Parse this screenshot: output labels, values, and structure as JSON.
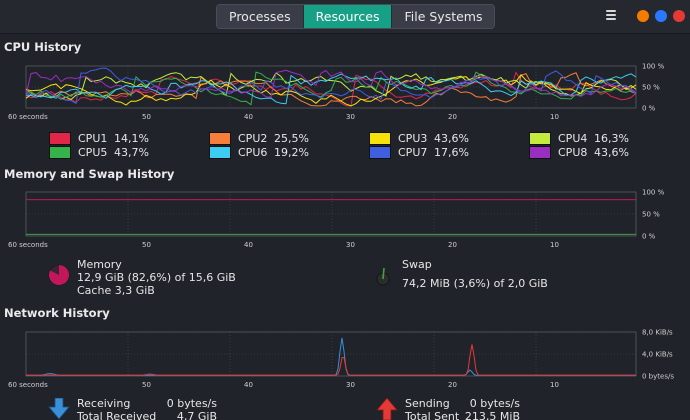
{
  "tabs": [
    {
      "label": "Processes",
      "active": false
    },
    {
      "label": "Resources",
      "active": true
    },
    {
      "label": "File Systems",
      "active": false
    }
  ],
  "window_buttons": [
    {
      "name": "minimize",
      "color": "#f57c00"
    },
    {
      "name": "maximize",
      "color": "#2979ff"
    },
    {
      "name": "close",
      "color": "#e53935"
    }
  ],
  "cpu": {
    "title": "CPU History",
    "y_ticks": [
      "100 %",
      "50 %",
      "0 %"
    ],
    "x_ticks": [
      "60 seconds",
      "50",
      "40",
      "30",
      "20",
      "10"
    ],
    "legend": [
      {
        "name": "CPU1",
        "value": "14,1%",
        "color": "#e2264a"
      },
      {
        "name": "CPU2",
        "value": "25,5%",
        "color": "#f57f3a"
      },
      {
        "name": "CPU3",
        "value": "43,6%",
        "color": "#f6e20b"
      },
      {
        "name": "CPU4",
        "value": "16,3%",
        "color": "#c3ec3f"
      },
      {
        "name": "CPU5",
        "value": "43,7%",
        "color": "#35b24a"
      },
      {
        "name": "CPU6",
        "value": "19,2%",
        "color": "#3dcdf2"
      },
      {
        "name": "CPU7",
        "value": "17,6%",
        "color": "#3e5fe0"
      },
      {
        "name": "CPU8",
        "value": "43,6%",
        "color": "#9a2fbf"
      }
    ]
  },
  "memory": {
    "title": "Memory and Swap History",
    "y_ticks": [
      "100 %",
      "50 %",
      "0 %"
    ],
    "x_ticks": [
      "60 seconds",
      "50",
      "40",
      "30",
      "20",
      "10"
    ],
    "memory_label": "Memory",
    "memory_line": "12,9 GiB (82,6%) of 15,6 GiB",
    "cache_line": "Cache 3,3 GiB",
    "memory_percent": 82.6,
    "memory_color": "#c2185b",
    "swap_label": "Swap",
    "swap_line": "74,2 MiB (3,6%) of 2,0 GiB",
    "swap_percent": 3.6,
    "swap_color": "#43a047"
  },
  "network": {
    "title": "Network History",
    "y_ticks": [
      "8,0 KiB/s",
      "4,0 KiB/s",
      "0 bytes/s"
    ],
    "x_ticks": [
      "60 seconds",
      "50",
      "40",
      "30",
      "20",
      "10"
    ],
    "receiving_label": "Receiving",
    "receiving_value": "0 bytes/s",
    "total_received_label": "Total Received",
    "total_received_value": "4,7 GiB",
    "sending_label": "Sending",
    "sending_value": "0 bytes/s",
    "total_sent_label": "Total Sent",
    "total_sent_value": "213,5 MiB",
    "receive_color": "#3a8fd9",
    "send_color": "#e53935"
  }
}
